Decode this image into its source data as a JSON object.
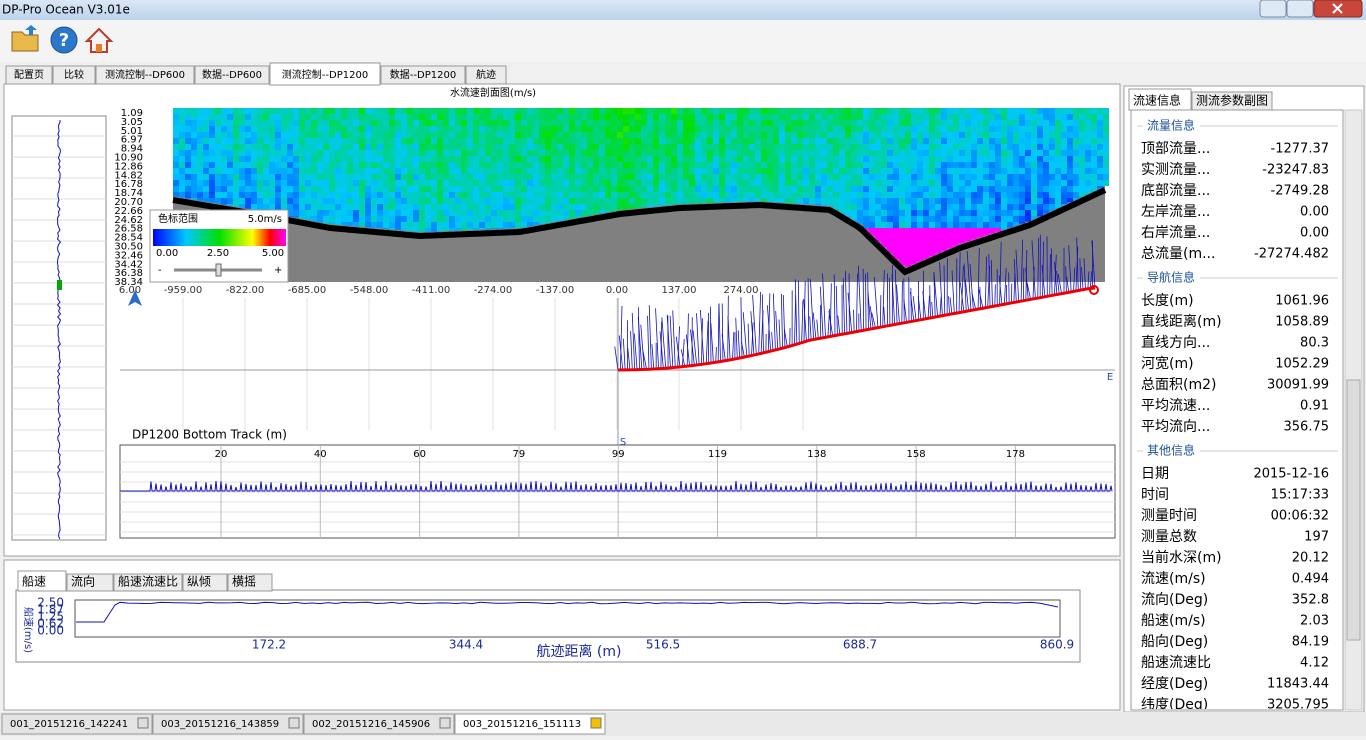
{
  "window": {
    "title": "DP-Pro Ocean V3.01e"
  },
  "tabs": [
    "配置页",
    "比较",
    "测流控制--DP600",
    "数据--DP600",
    "测流控制--DP1200",
    "数据--DP1200",
    "航迹"
  ],
  "profile": {
    "title": "水流速剖面图(m/s)",
    "depth_labels": [
      "1.09",
      "3.05",
      "5.01",
      "6.97",
      "8.94",
      "10.90",
      "12.86",
      "14.82",
      "16.78",
      "18.74",
      "20.70",
      "22.66",
      "24.62",
      "26.58",
      "28.54",
      "30.50",
      "32.46",
      "34.42",
      "36.38",
      "38.34"
    ],
    "distance_labels": [
      "6.00",
      "-959.00",
      "-822.00",
      "-685.00",
      "-548.00",
      "-411.00",
      "-274.00",
      "-137.00",
      "0.00",
      "137.00",
      "274.00"
    ],
    "legend": {
      "title": "色标范围",
      "max": "5.0m/s",
      "ticks": [
        "0.00",
        "2.50",
        "5.00"
      ],
      "minus": "-",
      "plus": "+"
    }
  },
  "track": {
    "east": "E",
    "south": "S"
  },
  "bottom_track": {
    "title": "DP1200 Bottom Track (m)",
    "ticks": [
      "20",
      "40",
      "60",
      "79",
      "99",
      "119",
      "138",
      "158",
      "178"
    ]
  },
  "lower_tabs": [
    "船速",
    "流向",
    "船速流速比",
    "纵倾",
    "横摇"
  ],
  "ship_speed": {
    "y_label": "船速(m/s)",
    "yticks": [
      "2.50",
      "1.87",
      "1.25",
      "0.62",
      "0.00"
    ],
    "xticks": [
      "172.2",
      "344.4",
      "516.5",
      "688.7",
      "860.9"
    ],
    "x_label": "航迹距离 (m)"
  },
  "side": {
    "tabs": [
      "流速信息",
      "测流参数副图"
    ],
    "groups": [
      {
        "title": "流量信息",
        "rows": [
          [
            "顶部流量...",
            "-1277.37"
          ],
          [
            "实测流量...",
            "-23247.83"
          ],
          [
            "底部流量...",
            "-2749.28"
          ],
          [
            "左岸流量...",
            "0.00"
          ],
          [
            "右岸流量...",
            "0.00"
          ],
          [
            "总流量(m...",
            "-27274.482"
          ]
        ]
      },
      {
        "title": "导航信息",
        "rows": [
          [
            "长度(m)",
            "1061.96"
          ],
          [
            "直线距离(m)",
            "1058.89"
          ],
          [
            "直线方向...",
            "80.3"
          ],
          [
            "河宽(m)",
            "1052.29"
          ],
          [
            "总面积(m2)",
            "30091.99"
          ],
          [
            "平均流速...",
            "0.91"
          ],
          [
            "平均流向...",
            "356.75"
          ]
        ]
      },
      {
        "title": "其他信息",
        "rows": [
          [
            "日期",
            "2015-12-16"
          ],
          [
            "时间",
            "15:17:33"
          ],
          [
            "测量时间",
            "00:06:32"
          ],
          [
            "测量总数",
            "197"
          ],
          [
            "当前水深(m)",
            "20.12"
          ],
          [
            "流速(m/s)",
            "0.494"
          ],
          [
            "流向(Deg)",
            "352.8"
          ],
          [
            "船速(m/s)",
            "2.03"
          ],
          [
            "船向(Deg)",
            "84.19"
          ],
          [
            "船速流速比",
            "4.12"
          ],
          [
            "经度(Deg)",
            "11843.44"
          ],
          [
            "纬度(Deg)",
            "3205.795"
          ]
        ]
      }
    ]
  },
  "files": [
    "001_20151216_142241",
    "003_20151216_143859",
    "002_20151216_145906",
    "003_20151216_151113"
  ]
}
